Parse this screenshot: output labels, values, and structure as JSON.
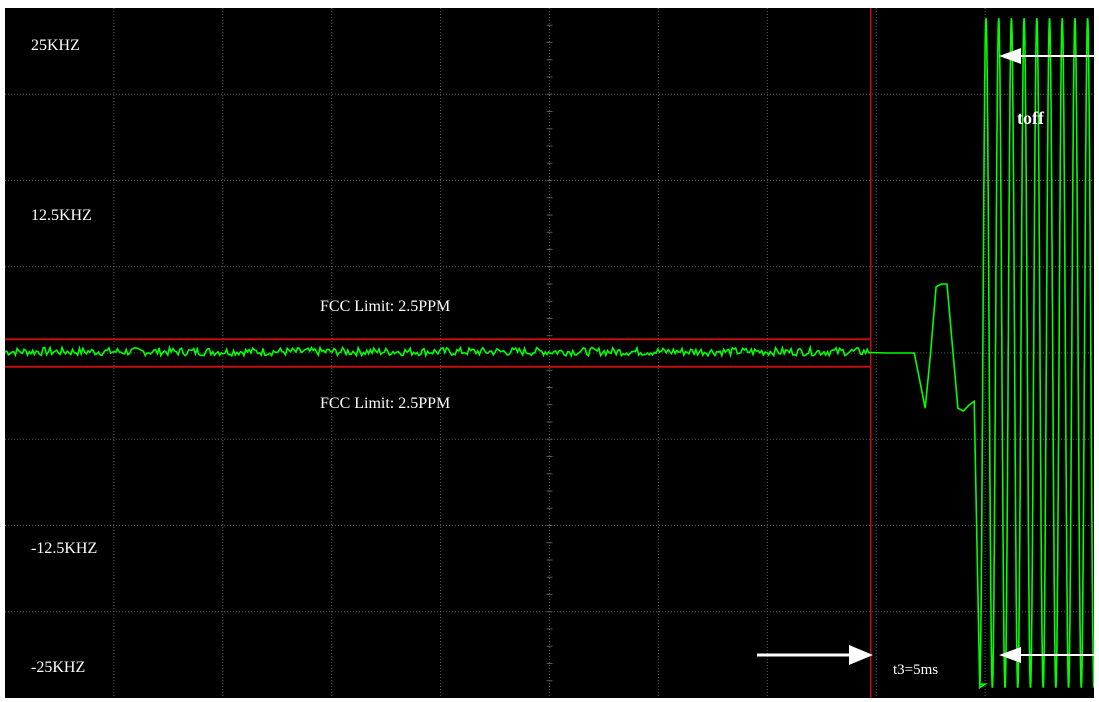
{
  "chart_data": {
    "type": "line",
    "title": "",
    "xlabel": "",
    "ylabel": "",
    "xlim": [
      0,
      10
    ],
    "ylim": [
      -25,
      25
    ],
    "x_divisions": 10,
    "y_divisions": 8,
    "y_tick_labels": [
      {
        "value": 25,
        "text": "25KHZ"
      },
      {
        "value": 12.5,
        "text": "12.5KHZ"
      },
      {
        "value": -12.5,
        "text": "-12.5KHZ"
      },
      {
        "value": -25,
        "text": "-25KHZ"
      }
    ],
    "limit_lines": [
      {
        "value": 1.0,
        "x_end": 7.95,
        "label": "FCC Limit: 2.5PPM",
        "label_value": 3.6
      },
      {
        "value": -1.0,
        "x_end": 7.95,
        "label": "FCC Limit: 2.5PPM",
        "label_value": -3.9
      }
    ],
    "markers": [
      {
        "x": 7.95,
        "label": "t3=5ms"
      }
    ],
    "annotations": {
      "toff": "toff",
      "t3": "t3=5ms"
    },
    "series": [
      {
        "color": "#00ff00",
        "x": [
          0,
          7.95,
          8.1,
          8.35,
          8.45,
          8.5,
          8.55,
          8.6,
          8.65,
          8.75,
          8.8,
          8.85,
          8.9,
          8.95,
          9.0
        ],
        "y": [
          0.1,
          0.0,
          0.0,
          0.0,
          -4.0,
          0.0,
          4.8,
          5.0,
          5.0,
          -4.0,
          -4.2,
          -3.8,
          -3.5,
          -24.0,
          -24.0
        ],
        "oscillation": {
          "x_start": 8.95,
          "x_end": 10.0,
          "amplitude": 25,
          "cycles": 9
        }
      }
    ],
    "grid": true
  },
  "colors": {
    "background": "#000000",
    "grid": "#5a5a5a",
    "trace": "#00ff00",
    "limit": "#c01010",
    "text": "#ffffff",
    "arrow": "#ffffff"
  }
}
